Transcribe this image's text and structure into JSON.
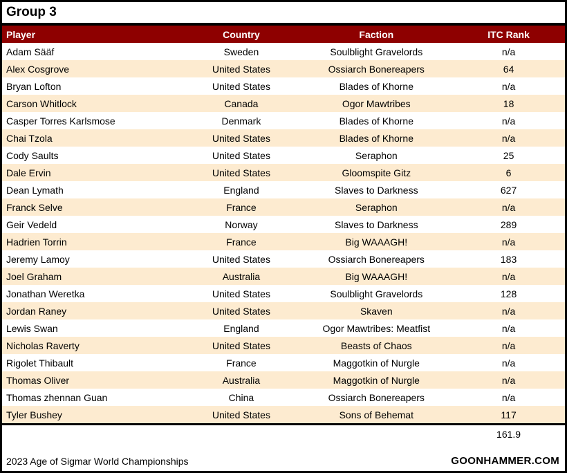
{
  "chart_data": {
    "type": "table",
    "title": "Group 3",
    "columns": [
      "Player",
      "Country",
      "Faction",
      "ITC Rank"
    ],
    "rows": [
      [
        "Adam Sääf",
        "Sweden",
        "Soulblight Gravelords",
        "n/a"
      ],
      [
        "Alex Cosgrove",
        "United States",
        "Ossiarch Bonereapers",
        "64"
      ],
      [
        "Bryan Lofton",
        "United States",
        "Blades of Khorne",
        "n/a"
      ],
      [
        "Carson Whitlock",
        "Canada",
        "Ogor Mawtribes",
        "18"
      ],
      [
        "Casper Torres Karlsmose",
        "Denmark",
        "Blades of Khorne",
        "n/a"
      ],
      [
        "Chai Tzola",
        "United States",
        "Blades of Khorne",
        "n/a"
      ],
      [
        "Cody Saults",
        "United States",
        "Seraphon",
        "25"
      ],
      [
        "Dale Ervin",
        "United States",
        "Gloomspite Gitz",
        "6"
      ],
      [
        "Dean Lymath",
        "England",
        "Slaves to Darkness",
        "627"
      ],
      [
        "Franck Selve",
        "France",
        "Seraphon",
        "n/a"
      ],
      [
        "Geir Vedeld",
        "Norway",
        "Slaves to Darkness",
        "289"
      ],
      [
        "Hadrien Torrin",
        "France",
        "Big WAAAGH!",
        "n/a"
      ],
      [
        "Jeremy Lamoy",
        "United States",
        "Ossiarch Bonereapers",
        "183"
      ],
      [
        "Joel Graham",
        "Australia",
        "Big WAAAGH!",
        "n/a"
      ],
      [
        "Jonathan Weretka",
        "United States",
        "Soulblight Gravelords",
        "128"
      ],
      [
        "Jordan Raney",
        "United States",
        "Skaven",
        "n/a"
      ],
      [
        "Lewis Swan",
        "England",
        "Ogor Mawtribes: Meatfist",
        "n/a"
      ],
      [
        "Nicholas Raverty",
        "United States",
        "Beasts of Chaos",
        "n/a"
      ],
      [
        "Rigolet Thibault",
        "France",
        "Maggotkin of Nurgle",
        "n/a"
      ],
      [
        "Thomas Oliver",
        "Australia",
        "Maggotkin of Nurgle",
        "n/a"
      ],
      [
        "Thomas zhennan Guan",
        "China",
        "Ossiarch Bonereapers",
        "n/a"
      ],
      [
        "Tyler Bushey",
        "United States",
        "Sons of Behemat",
        "117"
      ]
    ],
    "summary_value": "161.9",
    "footer_left": "2023 Age of Sigmar World Championships",
    "footer_right": "GOONHAMMER.COM",
    "colors": {
      "header_bg": "#8E0000",
      "header_text": "#FFFFFF",
      "row_alt_bg": "#FDEBD0",
      "border": "#000000"
    }
  }
}
